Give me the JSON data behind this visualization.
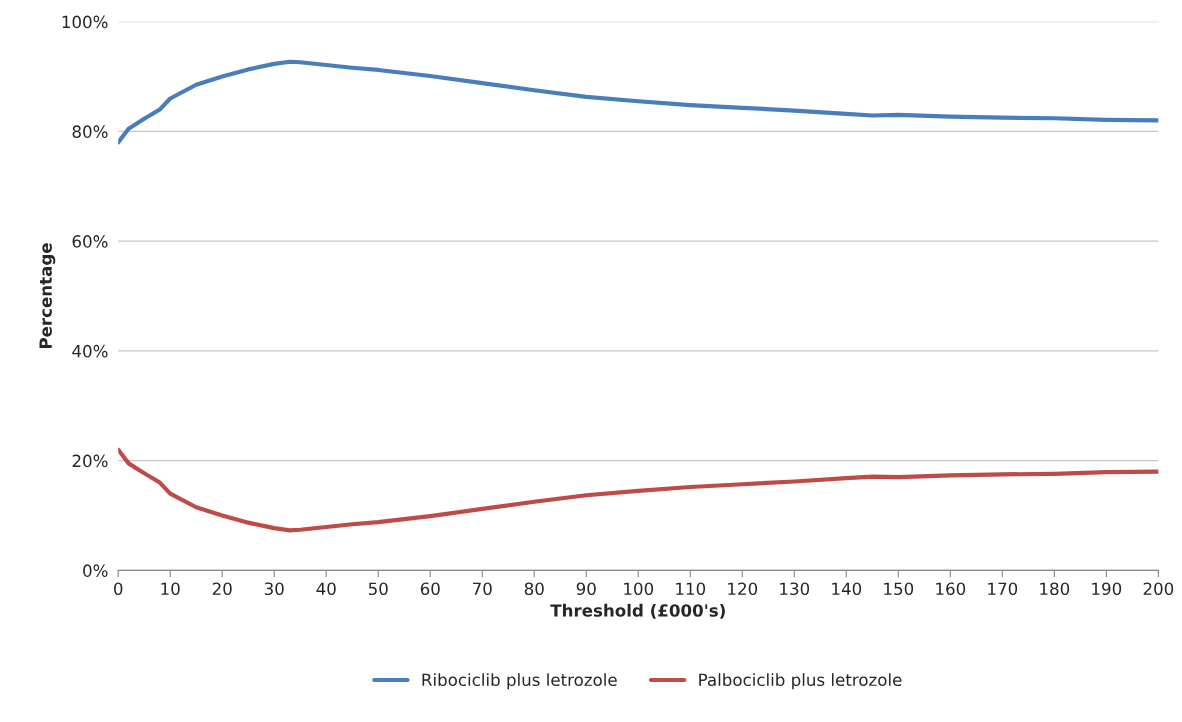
{
  "chart_data": {
    "type": "line",
    "xlabel": "Threshold (£000's)",
    "ylabel": "Percentage",
    "x": [
      0,
      2,
      5,
      8,
      10,
      15,
      20,
      25,
      30,
      33,
      35,
      40,
      45,
      50,
      60,
      70,
      80,
      90,
      100,
      110,
      120,
      130,
      140,
      145,
      150,
      160,
      170,
      180,
      190,
      200
    ],
    "series": [
      {
        "name": "Ribociclib plus letrozole",
        "color": "#4a7ebb",
        "values": [
          78,
          80.5,
          82.3,
          84,
          86,
          88.5,
          90,
          91.3,
          92.3,
          92.7,
          92.6,
          92.1,
          91.6,
          91.2,
          90.1,
          88.8,
          87.5,
          86.3,
          85.5,
          84.8,
          84.3,
          83.8,
          83.2,
          82.9,
          83,
          82.7,
          82.5,
          82.4,
          82.1,
          82
        ]
      },
      {
        "name": "Palbociclib plus letrozole",
        "color": "#be4b48",
        "values": [
          22,
          19.5,
          17.7,
          16,
          14,
          11.5,
          10,
          8.7,
          7.7,
          7.3,
          7.4,
          7.9,
          8.4,
          8.8,
          9.9,
          11.2,
          12.5,
          13.7,
          14.5,
          15.2,
          15.7,
          16.2,
          16.8,
          17.1,
          17,
          17.3,
          17.5,
          17.6,
          17.9,
          18
        ]
      }
    ],
    "xlim": [
      0,
      200
    ],
    "xticks": [
      0,
      10,
      20,
      30,
      40,
      50,
      60,
      70,
      80,
      90,
      100,
      110,
      120,
      130,
      140,
      150,
      160,
      170,
      180,
      190,
      200
    ],
    "ylim": [
      0,
      100
    ],
    "yticks": [
      {
        "value": 0,
        "label": "0%"
      },
      {
        "value": 20,
        "label": "20%"
      },
      {
        "value": 40,
        "label": "40%"
      },
      {
        "value": 60,
        "label": "60%"
      },
      {
        "value": 80,
        "label": "80%"
      },
      {
        "value": 100,
        "label": "100%"
      }
    ],
    "grid": "y",
    "legend": "bottom",
    "marker": "none",
    "line_style": "solid"
  }
}
